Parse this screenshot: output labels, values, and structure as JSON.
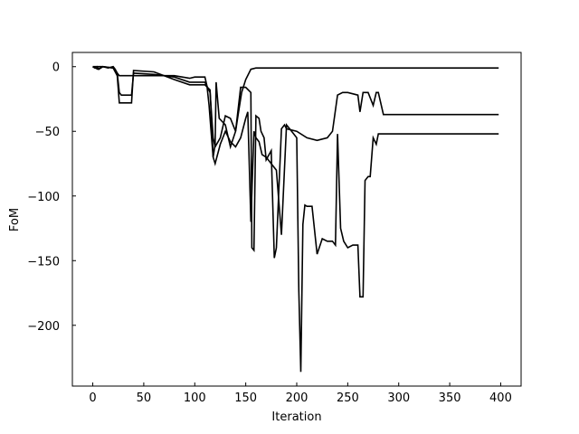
{
  "chart_data": {
    "type": "line",
    "title": "",
    "xlabel": "Iteration",
    "ylabel": "FoM",
    "xlim": [
      -20,
      420
    ],
    "ylim": [
      -247,
      11
    ],
    "grid": false,
    "legend": "none",
    "line_color": "#000000",
    "x_ticks": [
      0,
      50,
      100,
      150,
      200,
      250,
      300,
      350,
      400
    ],
    "x_tick_labels": [
      "0",
      "50",
      "100",
      "150",
      "200",
      "250",
      "300",
      "350",
      "400"
    ],
    "y_ticks": [
      0,
      -50,
      -100,
      -150,
      -200
    ],
    "y_tick_labels": [
      "0",
      "−50",
      "−100",
      "−150",
      "−200"
    ],
    "series": [
      {
        "x": [
          0,
          2,
          4,
          6,
          10,
          15,
          20,
          22,
          24,
          26,
          30,
          40,
          60,
          80,
          95,
          100,
          110,
          112,
          114,
          116,
          118,
          120,
          121,
          124,
          130,
          135,
          140,
          143,
          146,
          150,
          155,
          160,
          180,
          200,
          250,
          300,
          350,
          398
        ],
        "y": [
          0,
          -1,
          0,
          -2,
          0,
          -1,
          0,
          -2,
          -5,
          -7,
          -7,
          -7,
          -7,
          -7,
          -9,
          -8,
          -8,
          -15,
          -30,
          -50,
          -70,
          -60,
          -12,
          -40,
          -45,
          -62,
          -50,
          -35,
          -20,
          -10,
          -2,
          -1,
          -1,
          -1,
          -1,
          -1,
          -1,
          -1
        ]
      },
      {
        "x": [
          0,
          5,
          10,
          20,
          24,
          26,
          28,
          35,
          38,
          40,
          60,
          80,
          95,
          100,
          105,
          110,
          115,
          118,
          120,
          125,
          130,
          135,
          140,
          145,
          150,
          155,
          156,
          158,
          160,
          163,
          165,
          168,
          170,
          175,
          178,
          180,
          185,
          188,
          190,
          200,
          210,
          220,
          225,
          230,
          235,
          240,
          245,
          250,
          260,
          262,
          265,
          270,
          275,
          278,
          280,
          285,
          300,
          350,
          398
        ],
        "y": [
          0,
          -2,
          0,
          -1,
          -5,
          -20,
          -22,
          -22,
          -22,
          -5,
          -6,
          -8,
          -12,
          -12,
          -12,
          -12,
          -20,
          -55,
          -62,
          -55,
          -38,
          -40,
          -50,
          -16,
          -16,
          -20,
          -140,
          -142,
          -38,
          -40,
          -50,
          -55,
          -72,
          -65,
          -148,
          -140,
          -48,
          -45,
          -48,
          -50,
          -55,
          -57,
          -56,
          -55,
          -50,
          -22,
          -20,
          -20,
          -22,
          -35,
          -20,
          -20,
          -30,
          -20,
          -20,
          -37,
          -37,
          -37,
          -37
        ]
      },
      {
        "x": [
          0,
          10,
          20,
          24,
          26,
          28,
          38,
          40,
          60,
          80,
          95,
          100,
          105,
          110,
          115,
          118,
          120,
          125,
          130,
          135,
          140,
          145,
          150,
          152,
          155,
          158,
          160,
          163,
          166,
          170,
          175,
          180,
          185,
          190,
          195,
          200,
          202,
          204,
          206,
          208,
          210,
          215,
          220,
          225,
          230,
          235,
          238,
          240,
          243,
          246,
          250,
          255,
          260,
          262,
          265,
          267,
          270,
          272,
          275,
          278,
          280,
          300,
          350,
          398
        ],
        "y": [
          0,
          0,
          -1,
          -7,
          -28,
          -28,
          -28,
          -3,
          -4,
          -10,
          -14,
          -14,
          -14,
          -14,
          -18,
          -70,
          -75,
          -60,
          -50,
          -58,
          -62,
          -55,
          -40,
          -35,
          -120,
          -50,
          -55,
          -58,
          -68,
          -70,
          -75,
          -80,
          -130,
          -45,
          -50,
          -55,
          -173,
          -236,
          -122,
          -107,
          -108,
          -108,
          -145,
          -133,
          -135,
          -135,
          -138,
          -52,
          -125,
          -135,
          -140,
          -138,
          -138,
          -178,
          -178,
          -88,
          -85,
          -85,
          -55,
          -60,
          -52,
          -52,
          -52,
          -52
        ]
      }
    ]
  }
}
